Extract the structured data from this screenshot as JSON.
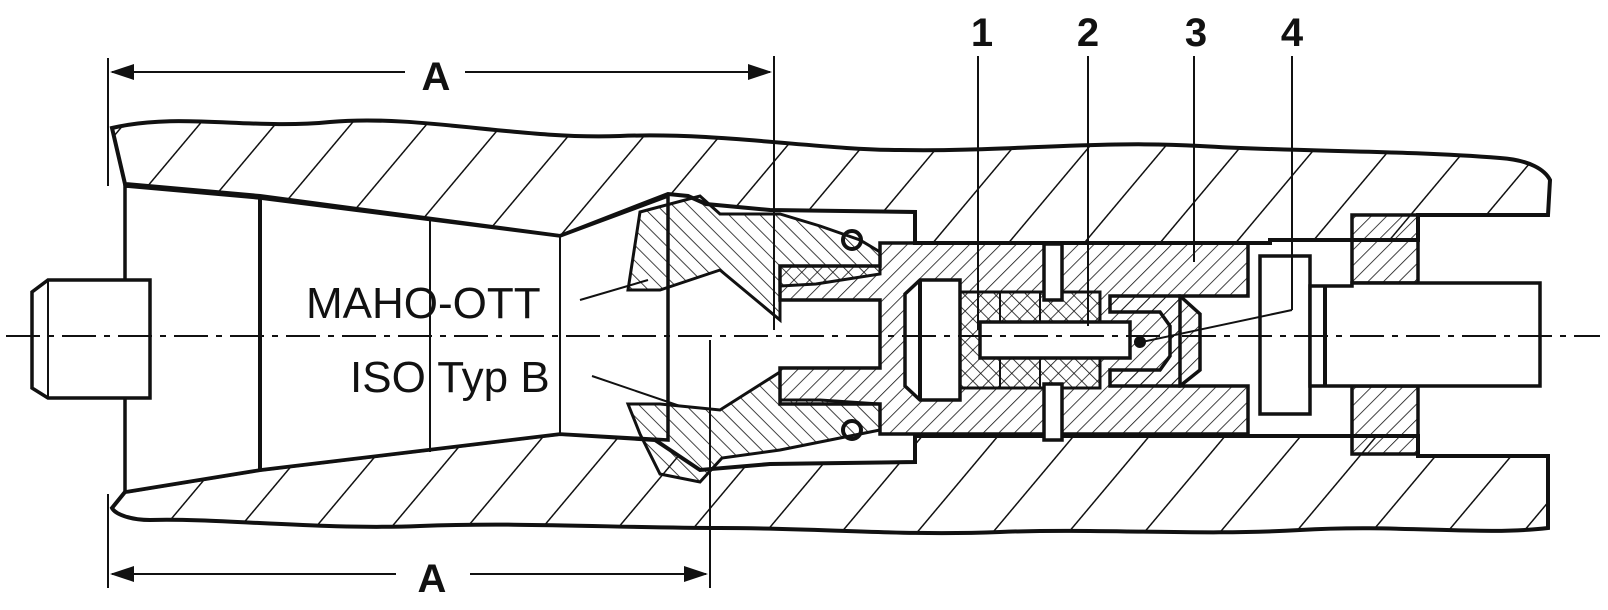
{
  "labels": {
    "dimension_top": "A",
    "dimension_bottom": "A",
    "collet_upper": "MAHO-OTT",
    "collet_lower": "ISO Typ B"
  },
  "callouts": [
    "1",
    "2",
    "3",
    "4"
  ],
  "colors": {
    "line": "#111111",
    "paper": "#ffffff"
  }
}
